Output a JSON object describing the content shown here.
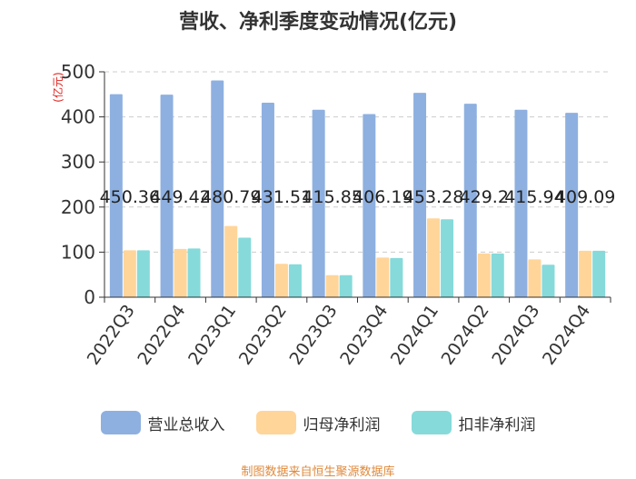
{
  "title": "营收、净利季度变动情况(亿元)",
  "source": "制图数据来自恒生聚源数据库",
  "chart_data": {
    "type": "bar",
    "title": "营收、净利季度变动情况(亿元)",
    "ylabel": "(亿元)",
    "ylim": [
      0,
      500
    ],
    "yticks": [
      0,
      100,
      200,
      300,
      400,
      500
    ],
    "grid": true,
    "legend_position": "bottom",
    "categories": [
      "2022Q3",
      "2022Q4",
      "2023Q1",
      "2023Q2",
      "2023Q3",
      "2023Q4",
      "2024Q1",
      "2024Q2",
      "2024Q3",
      "2024Q4"
    ],
    "series": [
      {
        "name": "营业总收入",
        "color": "#8eb0e0",
        "values": [
          450.36,
          449.42,
          480.79,
          431.51,
          415.85,
          406.19,
          453.28,
          429.2,
          415.94,
          409.09
        ]
      },
      {
        "name": "归母净利润",
        "color": "#ffd59a",
        "values": [
          104,
          107,
          158,
          74,
          49,
          88,
          175,
          97,
          84,
          103
        ]
      },
      {
        "name": "扣非净利润",
        "color": "#86dada",
        "values": [
          104,
          108,
          132,
          73,
          49,
          87,
          173,
          97,
          72,
          103
        ]
      }
    ],
    "data_labels": [
      "450.36",
      "449.42",
      "480.79",
      "431.51",
      "415.85",
      "406.19",
      "453.28",
      "429.2",
      "415.94",
      "409.09"
    ]
  }
}
